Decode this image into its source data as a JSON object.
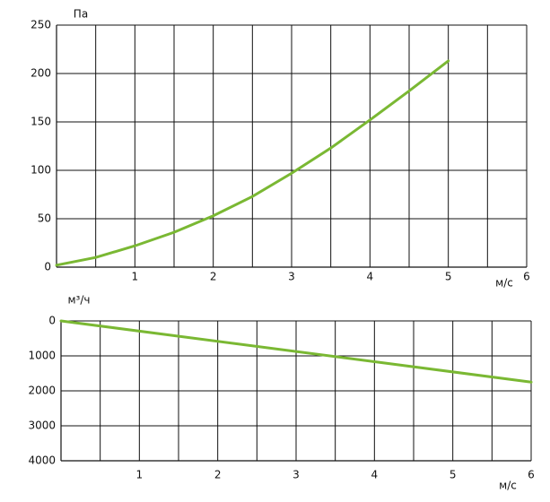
{
  "chart_data": [
    {
      "type": "line",
      "y_label": "Па",
      "x_label": "м/с",
      "x": [
        0,
        0.5,
        1,
        1.5,
        2,
        2.5,
        3,
        3.5,
        4,
        4.5,
        5
      ],
      "series": [
        {
          "color": "#7ab833",
          "values": [
            2,
            10,
            22,
            36,
            53,
            73,
            97,
            123,
            152,
            182,
            213
          ]
        }
      ],
      "xlim": [
        0,
        6
      ],
      "xticks": [
        1,
        2,
        3,
        4,
        5,
        6
      ],
      "ylim": [
        0,
        250
      ],
      "yticks": [
        0,
        50,
        100,
        150,
        200,
        250
      ],
      "grid": true,
      "minor_x_grid": true,
      "y_inverted": false
    },
    {
      "type": "line",
      "y_label": "м³/ч",
      "x_label": "м/с",
      "x": [
        0,
        6
      ],
      "series": [
        {
          "color": "#7ab833",
          "values": [
            0,
            1750
          ]
        }
      ],
      "xlim": [
        0,
        6
      ],
      "xticks": [
        1,
        2,
        3,
        4,
        5,
        6
      ],
      "ylim": [
        0,
        4000
      ],
      "yticks": [
        0,
        1000,
        2000,
        3000,
        4000
      ],
      "grid": true,
      "minor_x_grid": true,
      "y_inverted": true
    }
  ]
}
